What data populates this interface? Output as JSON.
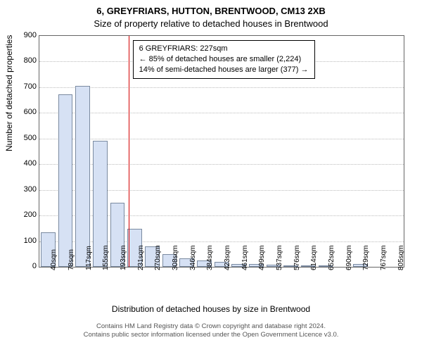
{
  "header": {
    "line1": "6, GREYFRIARS, HUTTON, BRENTWOOD, CM13 2XB",
    "line2": "Size of property relative to detached houses in Brentwood"
  },
  "chart": {
    "type": "histogram",
    "ylabel": "Number of detached properties",
    "xlabel": "Distribution of detached houses by size in Brentwood",
    "ylim": [
      0,
      900
    ],
    "ytick_step": 100,
    "bar_fill": "#d6e1f4",
    "bar_stroke": "#7a8aa0",
    "background": "#ffffff",
    "grid_color": "#bbbbbb",
    "ref_line_color": "#d40000",
    "ref_line_x_sqm": 227,
    "x_bins_sqm": [
      40,
      78,
      117,
      155,
      193,
      231,
      270,
      308,
      346,
      384,
      423,
      461,
      499,
      537,
      576,
      614,
      652,
      690,
      729,
      767,
      805
    ],
    "values": [
      135,
      672,
      705,
      490,
      250,
      148,
      80,
      50,
      33,
      25,
      20,
      10,
      10,
      8,
      6,
      4,
      2,
      0,
      10,
      0,
      0
    ],
    "annotation": {
      "line1": "6 GREYFRIARS: 227sqm",
      "line2": "← 85% of detached houses are smaller (2,224)",
      "line3": "14% of semi-detached houses are larger (377) →"
    }
  },
  "footer": {
    "line1": "Contains HM Land Registry data © Crown copyright and database right 2024.",
    "line2": "Contains public sector information licensed under the Open Government Licence v3.0."
  }
}
